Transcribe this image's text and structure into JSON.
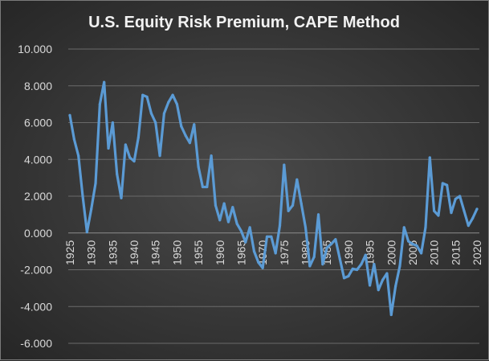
{
  "chart_data": {
    "type": "line",
    "title": "U.S. Equity Risk Premium, CAPE Method",
    "xlabel": "",
    "ylabel": "",
    "ylim": [
      -6,
      10
    ],
    "xlim": [
      1925,
      2020
    ],
    "y_ticks": [
      "-6.000",
      "-4.000",
      "-2.000",
      "0.000",
      "2.000",
      "4.000",
      "6.000",
      "8.000",
      "10.000"
    ],
    "x_ticks": [
      "1925",
      "1930",
      "1935",
      "1940",
      "1945",
      "1950",
      "1955",
      "1960",
      "1965",
      "1970",
      "1975",
      "1980",
      "1985",
      "1990",
      "1995",
      "2000",
      "2005",
      "2010",
      "2015",
      "2020"
    ],
    "grid": "horizontal",
    "line_color": "#5b9bd5",
    "x": [
      1925,
      1926,
      1927,
      1928,
      1929,
      1930,
      1931,
      1932,
      1933,
      1934,
      1935,
      1936,
      1937,
      1938,
      1939,
      1940,
      1941,
      1942,
      1943,
      1944,
      1945,
      1946,
      1947,
      1948,
      1949,
      1950,
      1951,
      1952,
      1953,
      1954,
      1955,
      1956,
      1957,
      1958,
      1959,
      1960,
      1961,
      1962,
      1963,
      1964,
      1965,
      1966,
      1967,
      1968,
      1969,
      1970,
      1971,
      1972,
      1973,
      1974,
      1975,
      1976,
      1977,
      1978,
      1979,
      1980,
      1981,
      1982,
      1983,
      1984,
      1985,
      1986,
      1987,
      1988,
      1989,
      1990,
      1991,
      1992,
      1993,
      1994,
      1995,
      1996,
      1997,
      1998,
      1999,
      2000,
      2001,
      2002,
      2003,
      2004,
      2005,
      2006,
      2007,
      2008,
      2009,
      2010,
      2011,
      2012,
      2013,
      2014,
      2015,
      2016,
      2017,
      2018,
      2019,
      2020
    ],
    "series": [
      {
        "values": [
          6.4,
          5.1,
          4.2,
          2.0,
          0.05,
          1.3,
          2.7,
          7.0,
          8.2,
          4.6,
          6.0,
          3.2,
          1.9,
          4.8,
          4.1,
          3.9,
          5.2,
          7.5,
          7.4,
          6.5,
          6.0,
          4.2,
          6.5,
          7.1,
          7.5,
          7.0,
          5.8,
          5.3,
          4.9,
          5.9,
          3.6,
          2.5,
          2.5,
          4.2,
          1.5,
          0.7,
          1.6,
          0.6,
          1.4,
          0.5,
          0.1,
          -0.5,
          0.3,
          -1.0,
          -1.6,
          -1.9,
          -0.2,
          -0.2,
          -1.1,
          0.4,
          3.7,
          1.2,
          1.5,
          2.9,
          1.6,
          0.3,
          -1.8,
          -1.3,
          1.0,
          -1.7,
          -0.8,
          -0.6,
          -0.35,
          -1.4,
          -2.45,
          -2.35,
          -1.95,
          -2.0,
          -1.7,
          -1.2,
          -2.85,
          -1.7,
          -3.1,
          -2.55,
          -2.2,
          -4.45,
          -2.9,
          -1.8,
          0.3,
          -0.45,
          -0.6,
          -0.7,
          -1.1,
          0.3,
          4.1,
          1.2,
          0.95,
          2.7,
          2.6,
          1.1,
          1.85,
          2.0,
          1.2,
          0.4,
          0.8,
          1.3
        ]
      }
    ]
  }
}
